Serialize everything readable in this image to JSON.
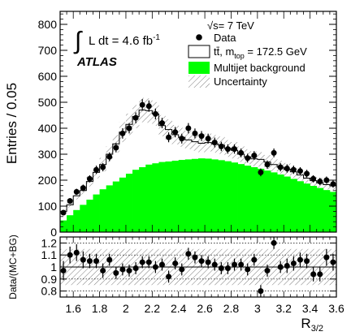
{
  "chart_data": [
    {
      "type": "bar",
      "panel": "main",
      "ylabel": "Entries / 0.05",
      "xlim": [
        1.5,
        3.6
      ],
      "ylim": [
        0,
        850
      ],
      "yticks": [
        0,
        100,
        200,
        300,
        400,
        500,
        600,
        700,
        800
      ],
      "luminosity": {
        "prefix": "L dt = 4.6 fb",
        "exponent": "-1"
      },
      "experiment_label": "ATLAS",
      "legend_placement": "top-right",
      "legend": {
        "energy": "√s= 7 TeV",
        "data": "Data",
        "ttbar": "tt̄, m",
        "ttbar_sub": "top",
        "ttbar_tail": " = 172.5 GeV",
        "multijet": "Multijet background",
        "uncertainty": "Uncertainty"
      },
      "colors": {
        "multijet": "#00ff00",
        "data": "#000000"
      },
      "bin_edges": [
        1.5,
        1.55,
        1.6,
        1.65,
        1.7,
        1.75,
        1.8,
        1.85,
        1.9,
        1.95,
        2.0,
        2.05,
        2.1,
        2.15,
        2.2,
        2.25,
        2.3,
        2.35,
        2.4,
        2.45,
        2.5,
        2.55,
        2.6,
        2.65,
        2.7,
        2.75,
        2.8,
        2.85,
        2.9,
        2.95,
        3.0,
        3.05,
        3.1,
        3.15,
        3.2,
        3.25,
        3.3,
        3.35,
        3.4,
        3.45,
        3.5,
        3.55,
        3.6
      ],
      "series": [
        {
          "name": "Multijet background",
          "values": [
            45,
            65,
            85,
            105,
            125,
            145,
            165,
            180,
            195,
            210,
            225,
            240,
            250,
            260,
            265,
            270,
            272,
            275,
            278,
            280,
            282,
            284,
            283,
            280,
            277,
            273,
            268,
            262,
            256,
            250,
            244,
            237,
            230,
            222,
            214,
            205,
            196,
            187,
            178,
            170,
            162,
            155
          ]
        },
        {
          "name": "tt̄, m top = 172.5 GeV",
          "values": [
            80,
            105,
            140,
            160,
            195,
            230,
            260,
            300,
            340,
            385,
            415,
            445,
            470,
            468,
            455,
            410,
            395,
            375,
            365,
            355,
            348,
            342,
            345,
            340,
            335,
            322,
            315,
            300,
            290,
            282,
            280,
            270,
            260,
            250,
            242,
            232,
            220,
            208,
            198,
            190,
            183,
            178
          ]
        },
        {
          "name": "Data",
          "x": [
            1.525,
            1.575,
            1.625,
            1.675,
            1.725,
            1.775,
            1.825,
            1.875,
            1.925,
            1.975,
            2.025,
            2.075,
            2.125,
            2.175,
            2.225,
            2.275,
            2.325,
            2.375,
            2.425,
            2.475,
            2.525,
            2.575,
            2.625,
            2.675,
            2.725,
            2.775,
            2.825,
            2.875,
            2.925,
            2.975,
            3.025,
            3.075,
            3.125,
            3.175,
            3.225,
            3.275,
            3.325,
            3.375,
            3.425,
            3.475,
            3.525,
            3.575
          ],
          "values": [
            75,
            120,
            155,
            170,
            205,
            240,
            250,
            290,
            325,
            380,
            400,
            440,
            490,
            485,
            455,
            420,
            365,
            385,
            360,
            400,
            380,
            370,
            360,
            345,
            330,
            320,
            320,
            305,
            285,
            295,
            230,
            260,
            305,
            250,
            245,
            240,
            235,
            225,
            205,
            195,
            200,
            185
          ],
          "errors": [
            9,
            11,
            12,
            13,
            14,
            16,
            16,
            17,
            18,
            20,
            20,
            21,
            22,
            22,
            21,
            20,
            19,
            20,
            19,
            20,
            19,
            19,
            19,
            19,
            18,
            18,
            18,
            17,
            17,
            17,
            15,
            16,
            17,
            16,
            16,
            16,
            15,
            15,
            14,
            14,
            14,
            14
          ]
        }
      ],
      "uncertainty_fraction": 0.1
    },
    {
      "type": "scatter",
      "panel": "ratio",
      "ylabel": "Data/(MC+BG)",
      "xlabel": "R",
      "xlabel_sub": "3/2",
      "xlim": [
        1.5,
        3.6
      ],
      "ylim": [
        0.75,
        1.25
      ],
      "yticks": [
        0.8,
        0.9,
        1,
        1.1,
        1.2
      ],
      "xticks": [
        1.6,
        1.8,
        2,
        2.2,
        2.4,
        2.6,
        2.8,
        3,
        3.2,
        3.4,
        3.6
      ],
      "x": [
        1.525,
        1.575,
        1.625,
        1.675,
        1.725,
        1.775,
        1.825,
        1.875,
        1.925,
        1.975,
        2.025,
        2.075,
        2.125,
        2.175,
        2.225,
        2.275,
        2.325,
        2.375,
        2.425,
        2.475,
        2.525,
        2.575,
        2.625,
        2.675,
        2.725,
        2.775,
        2.825,
        2.875,
        2.925,
        2.975,
        3.025,
        3.075,
        3.125,
        3.175,
        3.225,
        3.275,
        3.325,
        3.375,
        3.425,
        3.475,
        3.525,
        3.575
      ],
      "values": [
        0.97,
        1.1,
        1.12,
        1.06,
        1.05,
        1.05,
        0.97,
        1.06,
        0.95,
        0.98,
        0.97,
        0.99,
        1.04,
        1.04,
        1.0,
        1.02,
        0.92,
        1.03,
        0.98,
        1.11,
        1.08,
        1.05,
        1.04,
        1.02,
        0.99,
        0.99,
        1.02,
        1.02,
        0.98,
        1.06,
        0.8,
        0.97,
        1.2,
        1.0,
        1.01,
        1.03,
        1.06,
        1.05,
        0.94,
        0.94,
        1.08,
        1.04
      ],
      "errors": [
        0.08,
        0.07,
        0.07,
        0.07,
        0.06,
        0.06,
        0.06,
        0.05,
        0.05,
        0.05,
        0.05,
        0.05,
        0.05,
        0.05,
        0.05,
        0.05,
        0.05,
        0.05,
        0.05,
        0.05,
        0.05,
        0.05,
        0.05,
        0.05,
        0.05,
        0.05,
        0.05,
        0.05,
        0.05,
        0.05,
        0.05,
        0.05,
        0.05,
        0.05,
        0.06,
        0.06,
        0.06,
        0.06,
        0.06,
        0.06,
        0.07,
        0.07
      ],
      "reference_lines": [
        0.8,
        0.9,
        1.0,
        1.1,
        1.2
      ],
      "uncertainty_band": [
        0.85,
        1.15
      ]
    }
  ]
}
